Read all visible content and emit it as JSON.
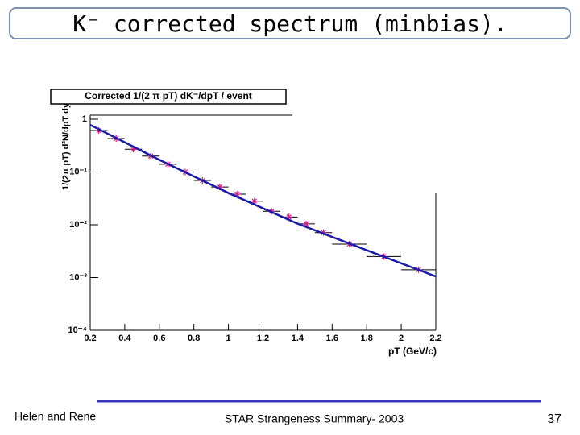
{
  "slide": {
    "title": "K⁻ corrected spectrum (minbias).",
    "footer_left": "Helen and Rene",
    "footer_center": "STAR Strangeness Summary- 2003",
    "page_number": "37"
  },
  "chart_data": {
    "type": "scatter",
    "title": "Corrected 1/(2 π pT) dK⁻/dpT / event",
    "xlabel": "pT (GeV/c)",
    "ylabel": "1/(2π pT) d²N/dpT dy",
    "log_y": true,
    "xlim": [
      0.2,
      2.2
    ],
    "xticks": [
      0.2,
      0.4,
      0.6,
      0.8,
      1,
      1.2,
      1.4,
      1.6,
      1.8,
      2,
      2.2
    ],
    "ylim": [
      0.0001,
      1.2
    ],
    "yticks": [
      {
        "value": 0.0001,
        "label": "10⁻⁴"
      },
      {
        "value": 0.001,
        "label": "10⁻³"
      },
      {
        "value": 0.01,
        "label": "10⁻²"
      },
      {
        "value": 0.1,
        "label": "10⁻¹"
      },
      1
    ],
    "series": [
      {
        "color": "#cc2288",
        "x": [
          0.25,
          0.35,
          0.45,
          0.55,
          0.65,
          0.75,
          0.85,
          0.95,
          1.05,
          1.15,
          1.25,
          1.35,
          1.45,
          1.55,
          1.7,
          1.9,
          2.1
        ],
        "x_errors": [
          0.05,
          0.05,
          0.05,
          0.05,
          0.05,
          0.05,
          0.05,
          0.05,
          0.05,
          0.05,
          0.05,
          0.05,
          0.05,
          0.05,
          0.1,
          0.1,
          0.1
        ],
        "values": [
          0.61,
          0.43,
          0.27,
          0.2,
          0.14,
          0.1,
          0.069,
          0.052,
          0.038,
          0.028,
          0.018,
          0.014,
          0.0104,
          0.0071,
          0.0043,
          0.0025,
          0.0014
        ]
      },
      {
        "color": "#1a1aaa",
        "style": "line",
        "x": [
          0.2,
          0.6,
          1.0,
          1.4,
          1.8,
          2.2
        ],
        "values": [
          0.78,
          0.17,
          0.04,
          0.0105,
          0.0033,
          0.00105
        ]
      }
    ]
  }
}
